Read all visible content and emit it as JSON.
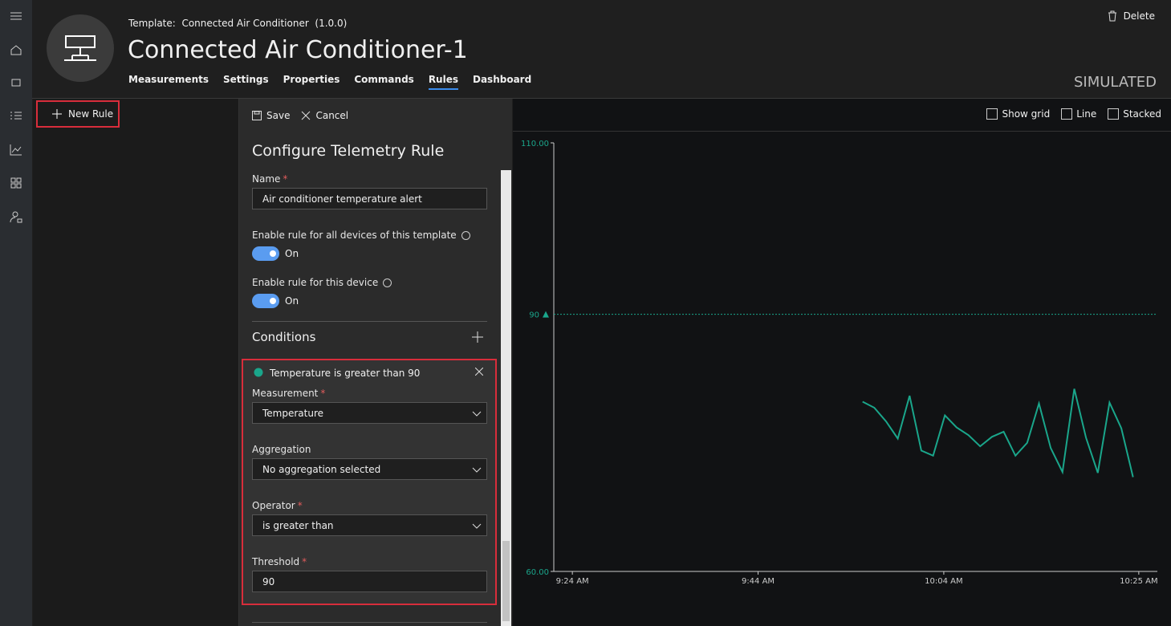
{
  "header": {
    "template_label": "Template:",
    "template_name": "Connected Air Conditioner",
    "version": "(1.0.0)",
    "title": "Connected Air Conditioner-1",
    "tabs": [
      "Measurements",
      "Settings",
      "Properties",
      "Commands",
      "Rules",
      "Dashboard"
    ],
    "active_tab": "Rules",
    "delete": "Delete",
    "status": "SIMULATED"
  },
  "left_panel": {
    "new_rule": "New Rule"
  },
  "toolbar": {
    "save": "Save",
    "cancel": "Cancel"
  },
  "form": {
    "title": "Configure Telemetry Rule",
    "required_mark": "*",
    "name_label": "Name",
    "name_value": "Air conditioner temperature alert",
    "toggles": [
      {
        "label": "Enable rule for all devices of this template",
        "state": "On"
      },
      {
        "label": "Enable rule for this device",
        "state": "On"
      }
    ],
    "conditions_title": "Conditions",
    "condition": {
      "summary": "Temperature is greater than 90",
      "fields": [
        {
          "label": "Measurement",
          "value": "Temperature",
          "required": true,
          "dropdown": true
        },
        {
          "label": "Aggregation",
          "value": "No aggregation selected",
          "required": false,
          "dropdown": true
        },
        {
          "label": "Operator",
          "value": "is greater than",
          "required": true,
          "dropdown": true
        },
        {
          "label": "Threshold",
          "value": "90",
          "required": true,
          "dropdown": false
        }
      ]
    }
  },
  "chart_tools": [
    "Show grid",
    "Line",
    "Stacked"
  ],
  "chart_data": {
    "type": "line",
    "color": "#1aa68b",
    "threshold": 90,
    "x": [
      "9:55:15 AM",
      "9:56:31 AM",
      "9:57:47 AM",
      "9:59:03 AM",
      "10:00:19 AM",
      "10:01:35 AM",
      "10:02:51 AM",
      "10:04:07 AM",
      "10:05:23 AM",
      "10:06:39 AM",
      "10:07:55 AM",
      "10:09:11 AM",
      "10:10:27 AM",
      "10:11:43 AM",
      "10:12:59 AM",
      "10:14:15 AM",
      "10:15:31 AM",
      "10:16:47 AM",
      "10:18:03 AM",
      "10:19:19 AM",
      "10:20:35 AM",
      "10:21:51 AM",
      "10:23:07 AM",
      "10:24:23 AM"
    ],
    "values": [
      79.8,
      79.1,
      77.5,
      75.5,
      80.5,
      74.1,
      73.5,
      78.2,
      76.8,
      75.9,
      74.6,
      75.7,
      76.3,
      73.5,
      75.0,
      79.6,
      74.4,
      71.6,
      81.3,
      75.6,
      71.5,
      79.7,
      76.7,
      71.0
    ],
    "xlim": [
      "9:22 AM",
      "10:27 AM"
    ],
    "xticks": [
      "9:24 AM",
      "9:44 AM",
      "10:04 AM",
      "10:25 AM"
    ],
    "ylim": [
      60,
      110
    ],
    "yticks": [
      {
        "value": 110,
        "label": "110.00"
      },
      {
        "value": 60,
        "label": "60.00"
      }
    ]
  }
}
